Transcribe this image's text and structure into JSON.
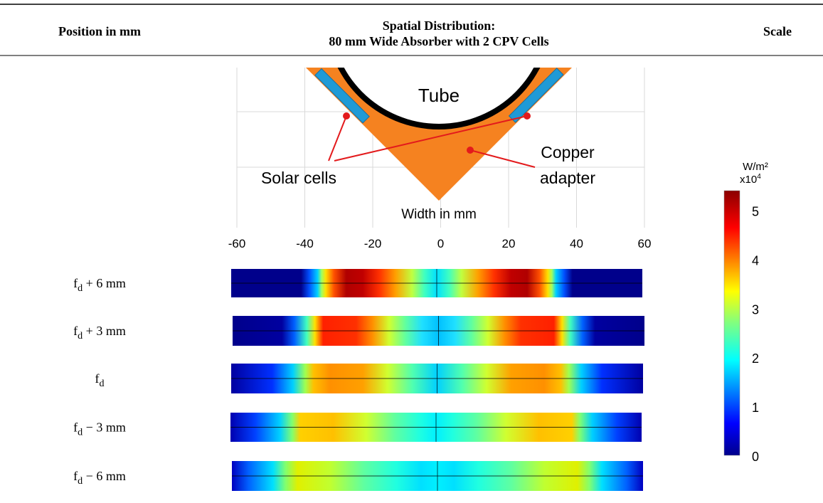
{
  "header": {
    "col1": "Position in mm",
    "col2": [
      "Spatial Distribution:",
      "80 mm Wide Absorber with 2 CPV Cells"
    ],
    "col3": "Scale"
  },
  "diagram": {
    "tube": "Tube",
    "solar_cells": "Solar cells",
    "copper_adapter": [
      "Copper",
      "adapter"
    ],
    "axis_label": "Width in mm",
    "xticks": [
      -60,
      -40,
      -20,
      0,
      20,
      40,
      60
    ]
  },
  "rows": [
    {
      "symbol": "f",
      "subscript": "d",
      "suffix": " + 6 mm"
    },
    {
      "symbol": "f",
      "subscript": "d",
      "suffix": " + 3 mm"
    },
    {
      "symbol": "f",
      "subscript": "d"
    },
    {
      "symbol": "f",
      "subscript": "d",
      "suffix": " − 3 mm"
    },
    {
      "symbol": "f",
      "subscript": "d",
      "suffix": " − 6 mm"
    }
  ],
  "scale": {
    "unit": "W/m²",
    "multiplier": "x10",
    "exponent": "4",
    "ticks": [
      0,
      1,
      2,
      3,
      4,
      5
    ]
  }
}
